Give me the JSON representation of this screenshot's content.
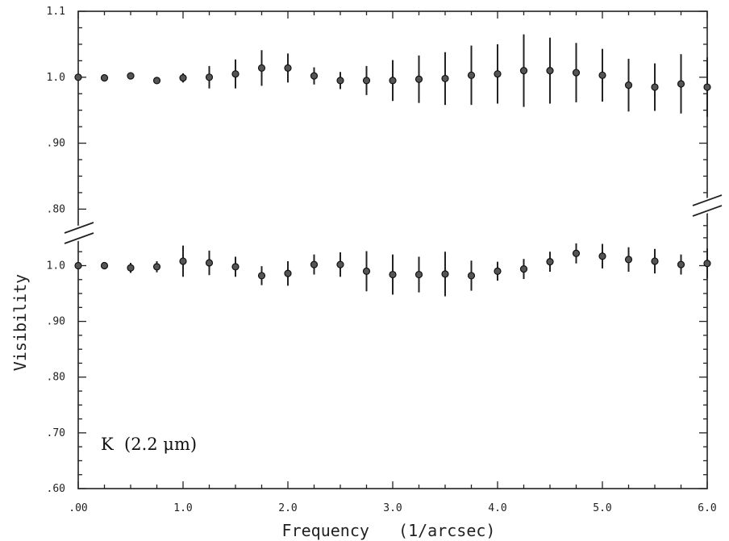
{
  "chart_data": {
    "type": "scatter",
    "title": "",
    "xlabel": "Frequency   (1/arcsec)",
    "ylabel": "Visibility",
    "annotation": "K  (2.2 μm)",
    "xlim": [
      0,
      6
    ],
    "grid": false,
    "x_ticks": [
      {
        "value": 0,
        "label": ".00"
      },
      {
        "value": 1,
        "label": "1.0"
      },
      {
        "value": 2,
        "label": "2.0"
      },
      {
        "value": 3,
        "label": "3.0"
      },
      {
        "value": 4,
        "label": "4.0"
      },
      {
        "value": 5,
        "label": "5.0"
      },
      {
        "value": 6,
        "label": "6.0"
      }
    ],
    "x_minor_step": 0.25,
    "panels": [
      {
        "name": "upper",
        "ylim": [
          0.765,
          1.1
        ],
        "y_ticks": [
          {
            "value": 1.1,
            "label": "1.1"
          },
          {
            "value": 1.0,
            "label": "1.0"
          },
          {
            "value": 0.9,
            "label": ".90"
          },
          {
            "value": 0.8,
            "label": ".80"
          }
        ],
        "x": [
          0,
          0.25,
          0.5,
          0.75,
          1.0,
          1.25,
          1.5,
          1.75,
          2.0,
          2.25,
          2.5,
          2.75,
          3.0,
          3.25,
          3.5,
          3.75,
          4.0,
          4.25,
          4.5,
          4.75,
          5.0,
          5.25,
          5.5,
          5.75,
          6.0
        ],
        "y": [
          1.0,
          0.999,
          1.002,
          0.995,
          0.999,
          1.0,
          1.005,
          1.014,
          1.014,
          1.002,
          0.995,
          0.995,
          0.995,
          0.997,
          0.998,
          1.003,
          1.005,
          1.01,
          1.01,
          1.007,
          1.003,
          0.988,
          0.985,
          0.99,
          0.985
        ],
        "yerr": [
          0.004,
          0.004,
          0.005,
          0.005,
          0.007,
          0.017,
          0.022,
          0.027,
          0.022,
          0.013,
          0.013,
          0.022,
          0.031,
          0.036,
          0.04,
          0.045,
          0.045,
          0.055,
          0.05,
          0.045,
          0.04,
          0.04,
          0.036,
          0.045,
          0.045
        ]
      },
      {
        "name": "lower",
        "ylim": [
          0.6,
          1.06
        ],
        "y_ticks": [
          {
            "value": 1.0,
            "label": "1.0"
          },
          {
            "value": 0.9,
            "label": ".90"
          },
          {
            "value": 0.8,
            "label": ".80"
          },
          {
            "value": 0.7,
            "label": ".70"
          },
          {
            "value": 0.6,
            "label": ".60"
          }
        ],
        "x": [
          0,
          0.25,
          0.5,
          0.75,
          1.0,
          1.25,
          1.5,
          1.75,
          2.0,
          2.25,
          2.5,
          2.75,
          3.0,
          3.25,
          3.5,
          3.75,
          4.0,
          4.25,
          4.5,
          4.75,
          5.0,
          5.25,
          5.5,
          5.75,
          6.0
        ],
        "y": [
          1.0,
          1.0,
          0.996,
          0.998,
          1.008,
          1.005,
          0.998,
          0.982,
          0.986,
          1.002,
          1.002,
          0.99,
          0.984,
          0.984,
          0.985,
          0.982,
          0.99,
          0.994,
          1.007,
          1.022,
          1.017,
          1.011,
          1.008,
          1.002,
          1.004
        ]
      }
    ],
    "lower_yerr": [
      0.006,
      0.004,
      0.009,
      0.01,
      0.028,
      0.022,
      0.018,
      0.017,
      0.022,
      0.018,
      0.022,
      0.036,
      0.036,
      0.032,
      0.04,
      0.027,
      0.017,
      0.018,
      0.018,
      0.018,
      0.022,
      0.022,
      0.022,
      0.018,
      0.027
    ]
  }
}
